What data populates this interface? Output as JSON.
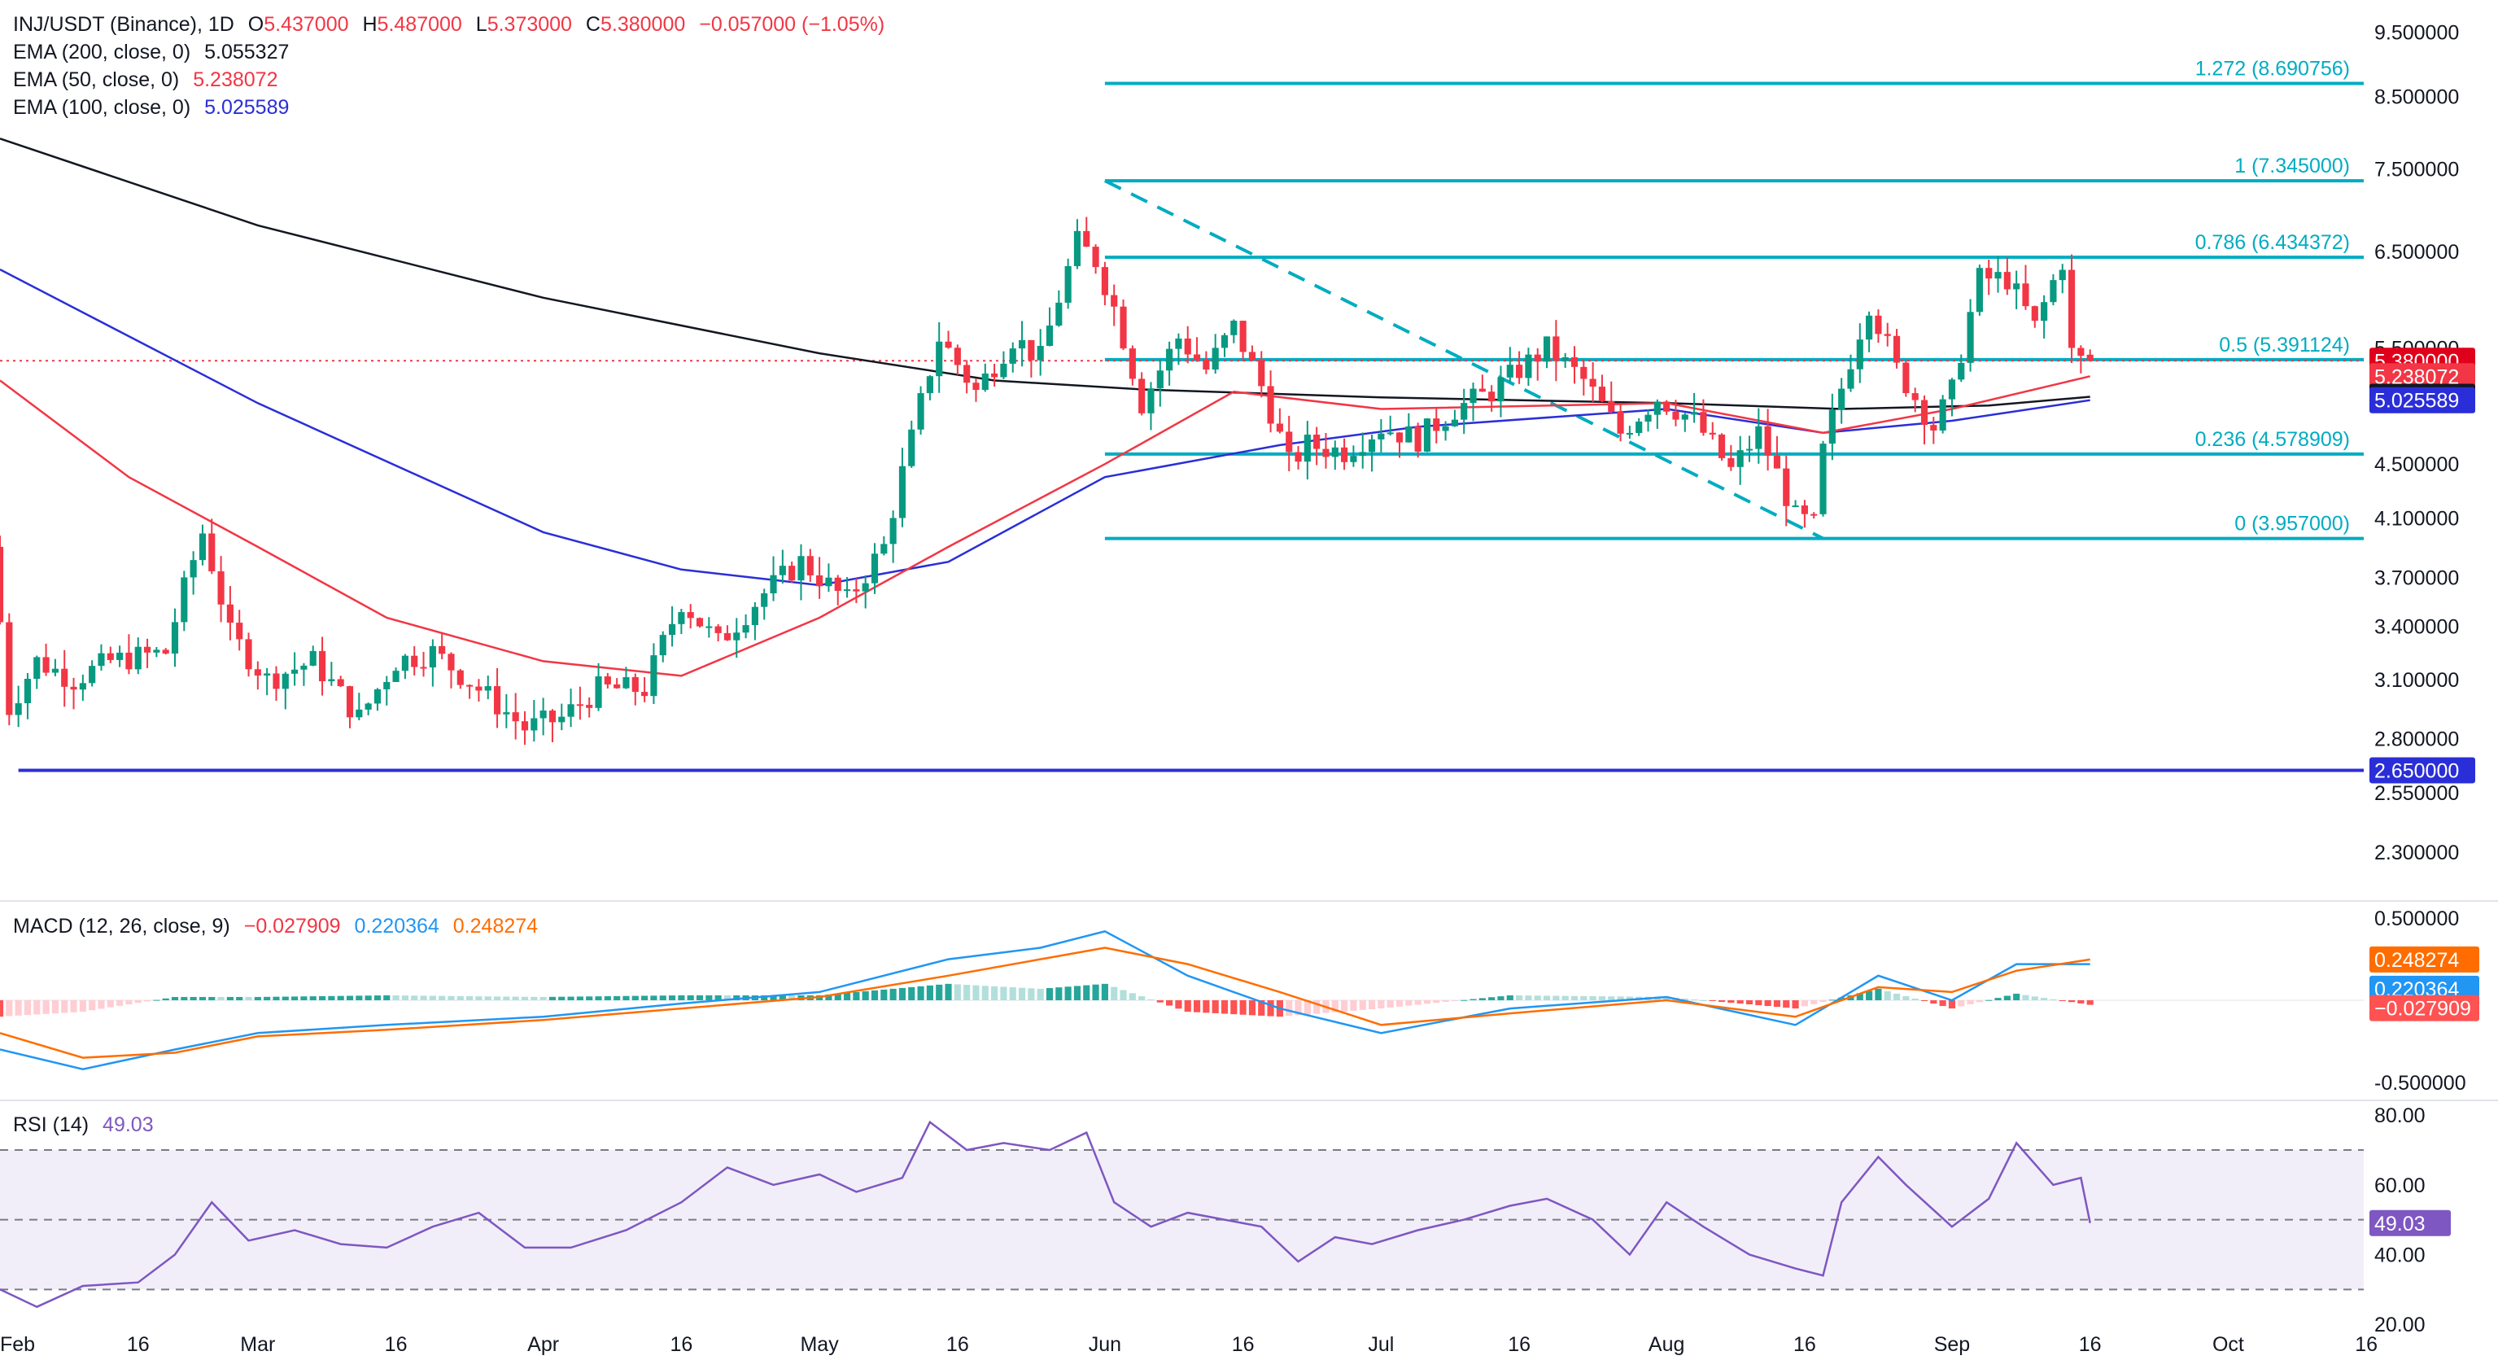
{
  "header": {
    "symbol": "INJ/USDT (Binance), 1D",
    "open_label": "O",
    "open": "5.437000",
    "high_label": "H",
    "high": "5.487000",
    "low_label": "L",
    "low": "5.373000",
    "close_label": "C",
    "close": "5.380000",
    "change": "−0.057000 (−1.05%)"
  },
  "indicators": {
    "ema200": {
      "label": "EMA (200, close, 0)",
      "value": "5.055327",
      "color": "#131722"
    },
    "ema50": {
      "label": "EMA (50, close, 0)",
      "value": "5.238072",
      "color": "#f23645"
    },
    "ema100": {
      "label": "EMA (100, close, 0)",
      "value": "5.025589",
      "color": "#2a2ed8"
    }
  },
  "macd_legend": {
    "label": "MACD (12, 26, close, 9)",
    "hist": "−0.027909",
    "macd": "0.220364",
    "signal": "0.248274"
  },
  "rsi_legend": {
    "label": "RSI (14)",
    "value": "49.03"
  },
  "chart_data": [
    {
      "type": "candlestick",
      "title": "INJ/USDT (Binance), 1D",
      "y_ticks": [
        "9.500000",
        "8.500000",
        "7.500000",
        "6.500000",
        "5.500000",
        "4.500000",
        "4.100000",
        "3.700000",
        "3.400000",
        "3.100000",
        "2.800000",
        "2.550000",
        "2.300000"
      ],
      "y_tick_values": [
        9.5,
        8.5,
        7.5,
        6.5,
        5.5,
        4.5,
        4.1,
        3.7,
        3.4,
        3.1,
        2.8,
        2.55,
        2.3
      ],
      "ylim": [
        2.15,
        9.9
      ],
      "scale": "log",
      "x_ticks": [
        "Feb",
        "16",
        "Mar",
        "16",
        "Apr",
        "16",
        "May",
        "16",
        "Jun",
        "16",
        "Jul",
        "16",
        "Aug",
        "16",
        "Sep",
        "16",
        "Oct",
        "16"
      ],
      "x_tick_dates": [
        "2025-02-01",
        "2025-02-16",
        "2025-03-01",
        "2025-03-16",
        "2025-04-01",
        "2025-04-16",
        "2025-05-01",
        "2025-05-16",
        "2025-06-01",
        "2025-06-16",
        "2025-07-01",
        "2025-07-16",
        "2025-08-01",
        "2025-08-16",
        "2025-09-01",
        "2025-09-16",
        "2025-10-01",
        "2025-10-16"
      ],
      "x_range": [
        "2025-02-01",
        "2025-10-25"
      ],
      "candle_anchors": [
        [
          "2025-02-01",
          3.9
        ],
        [
          "2025-02-03",
          2.95
        ],
        [
          "2025-02-06",
          3.2
        ],
        [
          "2025-02-10",
          3.1
        ],
        [
          "2025-02-14",
          3.2
        ],
        [
          "2025-02-20",
          3.25
        ],
        [
          "2025-02-24",
          4.0
        ],
        [
          "2025-02-27",
          3.35
        ],
        [
          "2025-03-03",
          3.1
        ],
        [
          "2025-03-08",
          3.2
        ],
        [
          "2025-03-13",
          2.9
        ],
        [
          "2025-03-17",
          3.2
        ],
        [
          "2025-03-21",
          3.25
        ],
        [
          "2025-03-26",
          3.05
        ],
        [
          "2025-03-31",
          2.85
        ],
        [
          "2025-04-04",
          2.9
        ],
        [
          "2025-04-08",
          3.05
        ],
        [
          "2025-04-13",
          3.05
        ],
        [
          "2025-04-17",
          3.55
        ],
        [
          "2025-04-21",
          3.3
        ],
        [
          "2025-04-26",
          3.6
        ],
        [
          "2025-04-30",
          3.8
        ],
        [
          "2025-05-05",
          3.55
        ],
        [
          "2025-05-09",
          3.9
        ],
        [
          "2025-05-12",
          4.7
        ],
        [
          "2025-05-15",
          5.6
        ],
        [
          "2025-05-19",
          5.1
        ],
        [
          "2025-05-23",
          5.6
        ],
        [
          "2025-05-26",
          5.4
        ],
        [
          "2025-05-30",
          6.6
        ],
        [
          "2025-06-01",
          6.4
        ],
        [
          "2025-06-03",
          5.9
        ],
        [
          "2025-06-06",
          5.0
        ],
        [
          "2025-06-10",
          5.6
        ],
        [
          "2025-06-13",
          5.3
        ],
        [
          "2025-06-16",
          5.7
        ],
        [
          "2025-06-19",
          5.15
        ],
        [
          "2025-06-22",
          4.5
        ],
        [
          "2025-06-24",
          4.65
        ],
        [
          "2025-06-28",
          4.6
        ],
        [
          "2025-07-02",
          4.8
        ],
        [
          "2025-07-06",
          4.7
        ],
        [
          "2025-07-10",
          4.95
        ],
        [
          "2025-07-14",
          5.1
        ],
        [
          "2025-07-17",
          5.3
        ],
        [
          "2025-07-20",
          5.5
        ],
        [
          "2025-07-24",
          5.2
        ],
        [
          "2025-07-28",
          4.75
        ],
        [
          "2025-08-01",
          5.05
        ],
        [
          "2025-08-05",
          4.85
        ],
        [
          "2025-08-09",
          4.45
        ],
        [
          "2025-08-12",
          4.75
        ],
        [
          "2025-08-16",
          4.1
        ],
        [
          "2025-08-18",
          4.05
        ],
        [
          "2025-08-19",
          4.6
        ],
        [
          "2025-08-22",
          5.4
        ],
        [
          "2025-08-24",
          5.95
        ],
        [
          "2025-08-27",
          5.3
        ],
        [
          "2025-08-31",
          4.8
        ],
        [
          "2025-09-02",
          5.1
        ],
        [
          "2025-09-05",
          6.2
        ],
        [
          "2025-09-08",
          6.2
        ],
        [
          "2025-09-11",
          5.7
        ],
        [
          "2025-09-14",
          6.4
        ],
        [
          "2025-09-15",
          5.45
        ],
        [
          "2025-09-16",
          5.38
        ]
      ],
      "last_candle": {
        "open": 5.437,
        "high": 5.487,
        "low": 5.373,
        "close": 5.38
      },
      "fib_levels": [
        {
          "label": "1.272 (8.690756)",
          "ratio": 1.272,
          "value": 8.690756
        },
        {
          "label": "1 (7.345000)",
          "ratio": 1,
          "value": 7.345
        },
        {
          "label": "0.786 (6.434372)",
          "ratio": 0.786,
          "value": 6.434372
        },
        {
          "label": "0.5 (5.391124)",
          "ratio": 0.5,
          "value": 5.391124
        },
        {
          "label": "0.236 (4.578909)",
          "ratio": 0.236,
          "value": 4.578909
        },
        {
          "label": "0 (3.957000)",
          "ratio": 0,
          "value": 3.957
        }
      ],
      "fib_start_date": "2025-06-01",
      "support_line": {
        "value": 2.65,
        "label": "2.650000",
        "start_date": "2025-02-03"
      },
      "trend_line": {
        "start": [
          "2025-06-01",
          7.345
        ],
        "end": [
          "2025-08-18",
          3.957
        ]
      },
      "price_labels": [
        {
          "label": "5.380000",
          "value": 5.38,
          "color": "#e0001b"
        },
        {
          "label": "5.238072",
          "value": 5.238072,
          "color": "#f23645"
        },
        {
          "label": "5.055327",
          "value": 5.055327,
          "color": "#131722"
        },
        {
          "label": "5.025589",
          "value": 5.025589,
          "color": "#2a2ed8"
        },
        {
          "label": "2.650000",
          "value": 2.65,
          "color": "#2a2ed8"
        }
      ],
      "ema_lines": {
        "ema200": [
          [
            "2025-02-01",
            7.9
          ],
          [
            "2025-03-01",
            6.8
          ],
          [
            "2025-04-01",
            6.0
          ],
          [
            "2025-05-01",
            5.45
          ],
          [
            "2025-05-20",
            5.2
          ],
          [
            "2025-06-05",
            5.12
          ],
          [
            "2025-07-01",
            5.05
          ],
          [
            "2025-08-01",
            5.0
          ],
          [
            "2025-08-20",
            4.95
          ],
          [
            "2025-09-05",
            4.98
          ],
          [
            "2025-09-16",
            5.055327
          ]
        ],
        "ema50": [
          [
            "2025-02-01",
            5.2
          ],
          [
            "2025-02-15",
            4.4
          ],
          [
            "2025-03-01",
            3.9
          ],
          [
            "2025-03-15",
            3.45
          ],
          [
            "2025-04-01",
            3.2
          ],
          [
            "2025-04-16",
            3.12
          ],
          [
            "2025-05-01",
            3.45
          ],
          [
            "2025-05-15",
            3.9
          ],
          [
            "2025-06-01",
            4.5
          ],
          [
            "2025-06-15",
            5.1
          ],
          [
            "2025-07-01",
            4.95
          ],
          [
            "2025-08-01",
            5.0
          ],
          [
            "2025-08-18",
            4.75
          ],
          [
            "2025-09-01",
            4.95
          ],
          [
            "2025-09-16",
            5.238072
          ]
        ],
        "ema100": [
          [
            "2025-02-01",
            6.3
          ],
          [
            "2025-03-01",
            5.0
          ],
          [
            "2025-04-01",
            4.0
          ],
          [
            "2025-04-16",
            3.75
          ],
          [
            "2025-05-01",
            3.65
          ],
          [
            "2025-05-15",
            3.8
          ],
          [
            "2025-06-01",
            4.4
          ],
          [
            "2025-06-20",
            4.65
          ],
          [
            "2025-07-05",
            4.8
          ],
          [
            "2025-08-01",
            4.95
          ],
          [
            "2025-08-18",
            4.75
          ],
          [
            "2025-09-01",
            4.85
          ],
          [
            "2025-09-16",
            5.025589
          ]
        ]
      }
    },
    {
      "type": "line",
      "title": "MACD (12, 26, close, 9)",
      "y_ticks": [
        "0.500000",
        "-0.500000"
      ],
      "y_tick_values": [
        0.5,
        -0.5
      ],
      "ylim": [
        -0.6,
        0.6
      ],
      "series": [
        {
          "name": "MACD",
          "color": "#2196f3",
          "points": [
            [
              "2025-02-01",
              -0.3
            ],
            [
              "2025-02-10",
              -0.42
            ],
            [
              "2025-02-20",
              -0.3
            ],
            [
              "2025-03-01",
              -0.2
            ],
            [
              "2025-03-15",
              -0.15
            ],
            [
              "2025-04-01",
              -0.1
            ],
            [
              "2025-04-16",
              -0.02
            ],
            [
              "2025-05-01",
              0.05
            ],
            [
              "2025-05-15",
              0.25
            ],
            [
              "2025-05-25",
              0.32
            ],
            [
              "2025-06-01",
              0.42
            ],
            [
              "2025-06-10",
              0.15
            ],
            [
              "2025-06-20",
              -0.05
            ],
            [
              "2025-07-01",
              -0.2
            ],
            [
              "2025-07-15",
              -0.05
            ],
            [
              "2025-08-01",
              0.02
            ],
            [
              "2025-08-15",
              -0.15
            ],
            [
              "2025-08-24",
              0.15
            ],
            [
              "2025-09-01",
              0.0
            ],
            [
              "2025-09-08",
              0.22
            ],
            [
              "2025-09-16",
              0.220364
            ]
          ]
        },
        {
          "name": "Signal",
          "color": "#ff6d00",
          "points": [
            [
              "2025-02-01",
              -0.2
            ],
            [
              "2025-02-10",
              -0.35
            ],
            [
              "2025-02-20",
              -0.32
            ],
            [
              "2025-03-01",
              -0.22
            ],
            [
              "2025-03-15",
              -0.18
            ],
            [
              "2025-04-01",
              -0.12
            ],
            [
              "2025-04-16",
              -0.05
            ],
            [
              "2025-05-01",
              0.02
            ],
            [
              "2025-05-15",
              0.15
            ],
            [
              "2025-05-25",
              0.25
            ],
            [
              "2025-06-01",
              0.32
            ],
            [
              "2025-06-10",
              0.22
            ],
            [
              "2025-06-20",
              0.05
            ],
            [
              "2025-07-01",
              -0.15
            ],
            [
              "2025-07-15",
              -0.08
            ],
            [
              "2025-08-01",
              0.0
            ],
            [
              "2025-08-15",
              -0.1
            ],
            [
              "2025-08-24",
              0.08
            ],
            [
              "2025-09-01",
              0.05
            ],
            [
              "2025-09-08",
              0.18
            ],
            [
              "2025-09-16",
              0.248274
            ]
          ]
        }
      ],
      "histogram_last": -0.027909
    },
    {
      "type": "line",
      "title": "RSI (14)",
      "y_ticks": [
        "80.00",
        "60.00",
        "40.00",
        "20.00"
      ],
      "y_tick_values": [
        80,
        60,
        40,
        20
      ],
      "ylim": [
        17,
        84
      ],
      "bands": [
        70,
        50,
        30
      ],
      "series": [
        {
          "name": "RSI",
          "color": "#7e57c2",
          "points": [
            [
              "2025-02-01",
              30
            ],
            [
              "2025-02-05",
              25
            ],
            [
              "2025-02-10",
              31
            ],
            [
              "2025-02-16",
              32
            ],
            [
              "2025-02-20",
              40
            ],
            [
              "2025-02-24",
              55
            ],
            [
              "2025-02-28",
              44
            ],
            [
              "2025-03-05",
              47
            ],
            [
              "2025-03-10",
              43
            ],
            [
              "2025-03-15",
              42
            ],
            [
              "2025-03-20",
              48
            ],
            [
              "2025-03-25",
              52
            ],
            [
              "2025-03-30",
              42
            ],
            [
              "2025-04-04",
              42
            ],
            [
              "2025-04-10",
              47
            ],
            [
              "2025-04-16",
              55
            ],
            [
              "2025-04-21",
              65
            ],
            [
              "2025-04-26",
              60
            ],
            [
              "2025-05-01",
              63
            ],
            [
              "2025-05-05",
              58
            ],
            [
              "2025-05-10",
              62
            ],
            [
              "2025-05-13",
              78
            ],
            [
              "2025-05-17",
              70
            ],
            [
              "2025-05-21",
              72
            ],
            [
              "2025-05-26",
              70
            ],
            [
              "2025-05-30",
              75
            ],
            [
              "2025-06-02",
              55
            ],
            [
              "2025-06-06",
              48
            ],
            [
              "2025-06-10",
              52
            ],
            [
              "2025-06-14",
              50
            ],
            [
              "2025-06-18",
              48
            ],
            [
              "2025-06-22",
              38
            ],
            [
              "2025-06-26",
              45
            ],
            [
              "2025-06-30",
              43
            ],
            [
              "2025-07-05",
              47
            ],
            [
              "2025-07-10",
              50
            ],
            [
              "2025-07-15",
              54
            ],
            [
              "2025-07-19",
              56
            ],
            [
              "2025-07-24",
              50
            ],
            [
              "2025-07-28",
              40
            ],
            [
              "2025-08-01",
              55
            ],
            [
              "2025-08-05",
              48
            ],
            [
              "2025-08-10",
              40
            ],
            [
              "2025-08-15",
              36
            ],
            [
              "2025-08-18",
              34
            ],
            [
              "2025-08-20",
              55
            ],
            [
              "2025-08-24",
              68
            ],
            [
              "2025-08-27",
              60
            ],
            [
              "2025-09-01",
              48
            ],
            [
              "2025-09-05",
              56
            ],
            [
              "2025-09-08",
              72
            ],
            [
              "2025-09-12",
              60
            ],
            [
              "2025-09-15",
              62
            ],
            [
              "2025-09-16",
              49.03
            ]
          ]
        }
      ]
    }
  ]
}
